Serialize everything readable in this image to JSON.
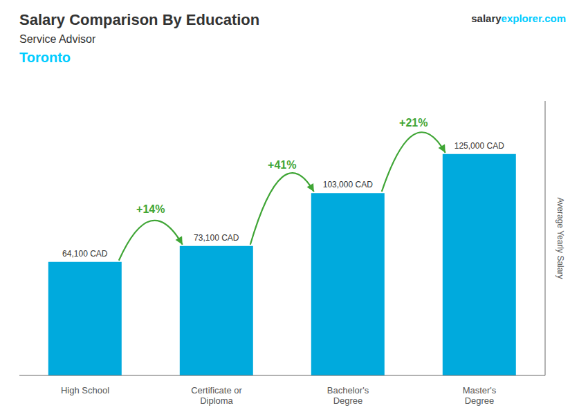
{
  "chart_data": {
    "type": "bar",
    "title": "Salary Comparison By Education",
    "subtitle": "Service Advisor",
    "categories": [
      "High School",
      "Certificate or\nDiploma",
      "Bachelor's\nDegree",
      "Master's\nDegree"
    ],
    "values": [
      64100,
      73100,
      103000,
      125000
    ],
    "value_labels": [
      "64,100 CAD",
      "73,100 CAD",
      "103,000 CAD",
      "125,000 CAD"
    ],
    "data_labels": true,
    "color": "#00aadd",
    "y_label": "Average Yearly Salary",
    "ylim": [
      0,
      155000
    ],
    "tick_labels": "x",
    "grid": false,
    "annotations": [
      {
        "text": "Toronto",
        "color": "#00ccff"
      },
      {
        "text": "salary"
      },
      {
        "text": "explorer.com",
        "color": "#00ccff"
      },
      {
        "text": "+14%",
        "from": "High School",
        "to": "Certificate or\nDiploma",
        "color": "#3fa535"
      },
      {
        "text": "+41%",
        "from": "Certificate or\nDiploma",
        "to": "Bachelor's\nDegree",
        "color": "#3fa535"
      },
      {
        "text": "+21%",
        "from": "Bachelor's\nDegree",
        "to": "Master's\nDegree",
        "color": "#3fa535"
      }
    ]
  }
}
